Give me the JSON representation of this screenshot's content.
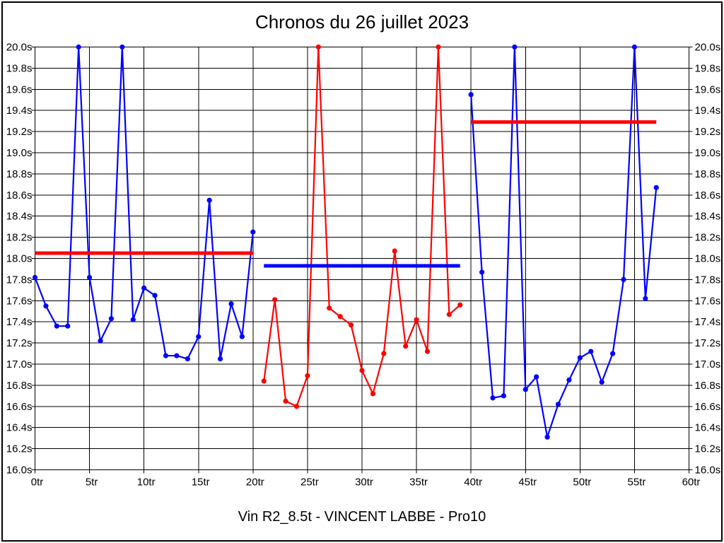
{
  "title": "Chronos du 26 juillet 2023",
  "footer": "Vin R2_8.5t - VINCENT LABBE - Pro10",
  "colors": {
    "background": "#ffffff",
    "frame": "#000000",
    "grid": "#000000",
    "text": "#000000",
    "stint_blue": "#0000ff",
    "stint_red": "#ff0000"
  },
  "chart_data": {
    "type": "line",
    "title": "Chronos du 26 juillet 2023",
    "xlabel": "",
    "ylabel": "",
    "x_unit": "tr",
    "y_unit": "s",
    "xlim": [
      0,
      60
    ],
    "ylim": [
      16.0,
      20.0
    ],
    "x_tick_step": 5,
    "y_tick_step": 0.2,
    "grid": true,
    "y_labels_both_sides": true,
    "legend": "none",
    "series": [
      {
        "name": "stint-1-blue",
        "color": "#0000ff",
        "x": [
          0,
          1,
          2,
          3,
          4,
          5,
          6,
          7,
          8,
          9,
          10,
          11,
          12,
          13,
          14,
          15,
          16,
          17,
          18,
          19,
          20
        ],
        "y": [
          17.82,
          17.55,
          17.36,
          17.36,
          20.0,
          17.82,
          17.22,
          17.43,
          20.0,
          17.42,
          17.72,
          17.65,
          17.08,
          17.08,
          17.05,
          17.26,
          18.55,
          17.05,
          17.57,
          17.26,
          18.25
        ]
      },
      {
        "name": "stint-2-red",
        "color": "#ff0000",
        "x": [
          21,
          22,
          23,
          24,
          25,
          26,
          27,
          28,
          29,
          30,
          31,
          32,
          33,
          34,
          35,
          36,
          37,
          38,
          39
        ],
        "y": [
          16.84,
          17.61,
          16.65,
          16.6,
          16.89,
          20.0,
          17.53,
          17.45,
          17.37,
          16.94,
          16.72,
          17.1,
          18.07,
          17.17,
          17.42,
          17.12,
          20.0,
          17.47,
          17.56
        ]
      },
      {
        "name": "stint-3-blue",
        "color": "#0000ff",
        "x": [
          40,
          41,
          42,
          43,
          44,
          45,
          46,
          47,
          48,
          49,
          50,
          51,
          52,
          53,
          54,
          55,
          56,
          57
        ],
        "y": [
          19.55,
          17.87,
          16.68,
          16.7,
          20.0,
          16.76,
          16.88,
          16.31,
          16.62,
          16.85,
          17.06,
          17.12,
          16.83,
          17.1,
          17.8,
          20.0,
          17.62,
          18.67
        ]
      }
    ],
    "average_lines": [
      {
        "name": "avg-stint-1",
        "color": "#ff0000",
        "x0": 0,
        "x1": 20,
        "y": 18.05
      },
      {
        "name": "avg-stint-2",
        "color": "#0000ff",
        "x0": 21,
        "x1": 39,
        "y": 17.93
      },
      {
        "name": "avg-stint-3",
        "color": "#ff0000",
        "x0": 40,
        "x1": 57,
        "y": 19.29
      }
    ]
  }
}
